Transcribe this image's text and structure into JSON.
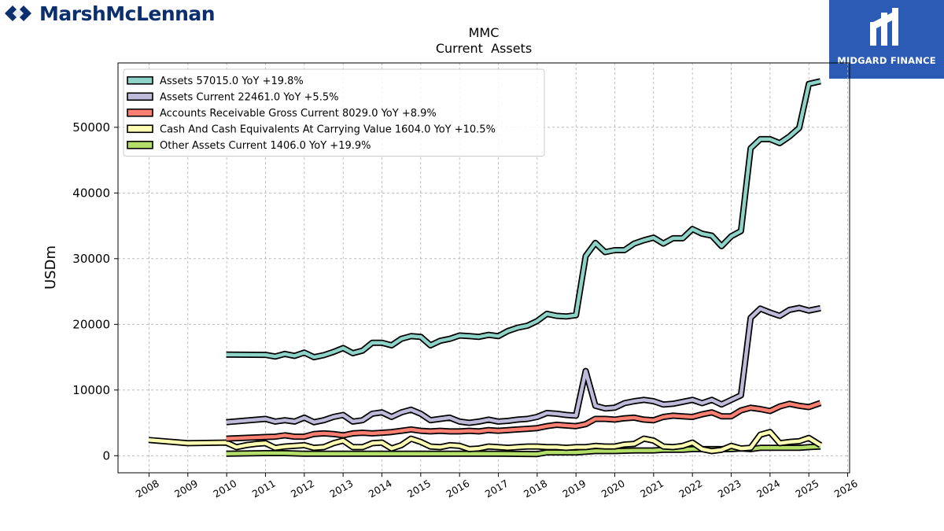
{
  "branding": {
    "left_logo_text": "MarshMcLennan",
    "right_logo_text": "MIDGARD FINANCE",
    "left_logo_color": "#0b2f6e",
    "right_logo_bg": "#2b5bb5"
  },
  "chart_data": {
    "type": "line",
    "title": "MMC",
    "subtitle": "Current  Assets",
    "ylabel": "USDm",
    "xlabel": "",
    "xlim": [
      2007.2,
      2026.05
    ],
    "ylim": [
      -2600,
      59800
    ],
    "xticks": [
      2008,
      2009,
      2010,
      2011,
      2012,
      2013,
      2014,
      2015,
      2016,
      2017,
      2018,
      2019,
      2020,
      2021,
      2022,
      2023,
      2024,
      2025,
      2026
    ],
    "xtick_labels": [
      "2008",
      "2009",
      "2010",
      "2011",
      "2012",
      "2013",
      "2014",
      "2015",
      "2016",
      "2017",
      "2018",
      "2019",
      "2020",
      "2021",
      "2022",
      "2023",
      "2024",
      "2025",
      "2026"
    ],
    "yticks": [
      0,
      10000,
      20000,
      30000,
      40000,
      50000
    ],
    "ytick_labels": [
      "0",
      "10000",
      "20000",
      "30000",
      "40000",
      "50000"
    ],
    "grid": true,
    "legend_position": "top-left",
    "series": [
      {
        "name": "Assets  57015.0 YoY +19.8%",
        "color": "#8dd3c7",
        "points": [
          [
            2009.99,
            15400
          ],
          [
            2011.0,
            15350
          ],
          [
            2011.25,
            15100
          ],
          [
            2011.5,
            15500
          ],
          [
            2011.75,
            15200
          ],
          [
            2012.0,
            15700
          ],
          [
            2012.25,
            15000
          ],
          [
            2012.5,
            15300
          ],
          [
            2012.75,
            15800
          ],
          [
            2013.0,
            16400
          ],
          [
            2013.25,
            15600
          ],
          [
            2013.5,
            16000
          ],
          [
            2013.75,
            17200
          ],
          [
            2014.0,
            17200
          ],
          [
            2014.25,
            16800
          ],
          [
            2014.5,
            17800
          ],
          [
            2014.75,
            18200
          ],
          [
            2015.0,
            18100
          ],
          [
            2015.25,
            16800
          ],
          [
            2015.5,
            17500
          ],
          [
            2015.75,
            17800
          ],
          [
            2016.0,
            18300
          ],
          [
            2016.25,
            18200
          ],
          [
            2016.5,
            18100
          ],
          [
            2016.75,
            18400
          ],
          [
            2017.0,
            18200
          ],
          [
            2017.25,
            19000
          ],
          [
            2017.5,
            19500
          ],
          [
            2017.75,
            19800
          ],
          [
            2018.0,
            20500
          ],
          [
            2018.25,
            21600
          ],
          [
            2018.5,
            21300
          ],
          [
            2018.75,
            21200
          ],
          [
            2019.0,
            21400
          ],
          [
            2019.25,
            30400
          ],
          [
            2019.5,
            32400
          ],
          [
            2019.75,
            31000
          ],
          [
            2020.0,
            31300
          ],
          [
            2020.25,
            31300
          ],
          [
            2020.5,
            32300
          ],
          [
            2020.75,
            32800
          ],
          [
            2021.0,
            33200
          ],
          [
            2021.25,
            32300
          ],
          [
            2021.5,
            33100
          ],
          [
            2021.75,
            33100
          ],
          [
            2022.0,
            34500
          ],
          [
            2022.25,
            33800
          ],
          [
            2022.5,
            33500
          ],
          [
            2022.75,
            31900
          ],
          [
            2023.0,
            33400
          ],
          [
            2023.25,
            34200
          ],
          [
            2023.5,
            46800
          ],
          [
            2023.75,
            48200
          ],
          [
            2024.0,
            48200
          ],
          [
            2024.25,
            47600
          ],
          [
            2024.5,
            48600
          ],
          [
            2024.75,
            49900
          ],
          [
            2025.0,
            56600
          ],
          [
            2025.3,
            57015
          ]
        ]
      },
      {
        "name": "Assets Current  22461.0 YoY +5.5%",
        "color": "#bebada",
        "points": [
          [
            2009.99,
            5100
          ],
          [
            2011.0,
            5600
          ],
          [
            2011.25,
            5200
          ],
          [
            2011.5,
            5400
          ],
          [
            2011.75,
            5200
          ],
          [
            2012.0,
            5800
          ],
          [
            2012.25,
            5100
          ],
          [
            2012.5,
            5400
          ],
          [
            2012.75,
            5900
          ],
          [
            2013.0,
            6200
          ],
          [
            2013.25,
            5200
          ],
          [
            2013.5,
            5400
          ],
          [
            2013.75,
            6400
          ],
          [
            2014.0,
            6600
          ],
          [
            2014.25,
            5900
          ],
          [
            2014.5,
            6600
          ],
          [
            2014.75,
            7000
          ],
          [
            2015.0,
            6400
          ],
          [
            2015.25,
            5400
          ],
          [
            2015.5,
            5600
          ],
          [
            2015.75,
            5800
          ],
          [
            2016.0,
            5200
          ],
          [
            2016.25,
            5000
          ],
          [
            2016.5,
            5200
          ],
          [
            2016.75,
            5500
          ],
          [
            2017.0,
            5200
          ],
          [
            2017.25,
            5300
          ],
          [
            2017.5,
            5500
          ],
          [
            2017.75,
            5600
          ],
          [
            2018.0,
            5900
          ],
          [
            2018.25,
            6500
          ],
          [
            2018.5,
            6400
          ],
          [
            2018.75,
            6200
          ],
          [
            2019.0,
            6100
          ],
          [
            2019.25,
            12900
          ],
          [
            2019.5,
            7600
          ],
          [
            2019.75,
            7200
          ],
          [
            2020.0,
            7300
          ],
          [
            2020.25,
            8000
          ],
          [
            2020.5,
            8300
          ],
          [
            2020.75,
            8500
          ],
          [
            2021.0,
            8300
          ],
          [
            2021.25,
            7800
          ],
          [
            2021.5,
            7900
          ],
          [
            2021.75,
            8200
          ],
          [
            2022.0,
            8500
          ],
          [
            2022.25,
            8000
          ],
          [
            2022.5,
            8500
          ],
          [
            2022.75,
            7800
          ],
          [
            2023.0,
            8500
          ],
          [
            2023.25,
            9200
          ],
          [
            2023.5,
            21000
          ],
          [
            2023.75,
            22400
          ],
          [
            2024.0,
            21800
          ],
          [
            2024.25,
            21300
          ],
          [
            2024.5,
            22200
          ],
          [
            2024.75,
            22500
          ],
          [
            2025.0,
            22100
          ],
          [
            2025.3,
            22461
          ]
        ]
      },
      {
        "name": "Accounts Receivable Gross Current  8029.0 YoY +8.9%",
        "color": "#fb8072",
        "points": [
          [
            2009.99,
            2600
          ],
          [
            2011.0,
            2850
          ],
          [
            2011.25,
            2900
          ],
          [
            2011.5,
            3100
          ],
          [
            2011.75,
            2900
          ],
          [
            2012.0,
            2900
          ],
          [
            2012.25,
            3300
          ],
          [
            2012.5,
            3400
          ],
          [
            2012.75,
            3300
          ],
          [
            2013.0,
            3100
          ],
          [
            2013.25,
            3400
          ],
          [
            2013.5,
            3500
          ],
          [
            2013.75,
            3400
          ],
          [
            2014.0,
            3500
          ],
          [
            2014.25,
            3600
          ],
          [
            2014.5,
            3800
          ],
          [
            2014.75,
            4000
          ],
          [
            2015.0,
            3800
          ],
          [
            2015.25,
            3700
          ],
          [
            2015.5,
            3800
          ],
          [
            2015.75,
            3700
          ],
          [
            2016.0,
            3700
          ],
          [
            2016.25,
            3800
          ],
          [
            2016.5,
            3700
          ],
          [
            2016.75,
            3900
          ],
          [
            2017.0,
            3800
          ],
          [
            2017.25,
            3900
          ],
          [
            2017.5,
            4000
          ],
          [
            2017.75,
            4100
          ],
          [
            2018.0,
            4200
          ],
          [
            2018.25,
            4500
          ],
          [
            2018.5,
            4700
          ],
          [
            2018.75,
            4600
          ],
          [
            2019.0,
            4500
          ],
          [
            2019.25,
            4800
          ],
          [
            2019.5,
            5600
          ],
          [
            2019.75,
            5600
          ],
          [
            2020.0,
            5500
          ],
          [
            2020.25,
            5700
          ],
          [
            2020.5,
            5800
          ],
          [
            2020.75,
            5500
          ],
          [
            2021.0,
            5400
          ],
          [
            2021.25,
            5900
          ],
          [
            2021.5,
            6100
          ],
          [
            2021.75,
            6000
          ],
          [
            2022.0,
            5900
          ],
          [
            2022.25,
            6300
          ],
          [
            2022.5,
            6600
          ],
          [
            2022.75,
            6000
          ],
          [
            2023.0,
            6000
          ],
          [
            2023.25,
            6900
          ],
          [
            2023.5,
            7300
          ],
          [
            2023.75,
            7100
          ],
          [
            2024.0,
            6800
          ],
          [
            2024.25,
            7500
          ],
          [
            2024.5,
            7900
          ],
          [
            2024.75,
            7600
          ],
          [
            2025.0,
            7400
          ],
          [
            2025.3,
            8029
          ]
        ]
      },
      {
        "name": "Cash And Cash Equivalents At Carrying Value  1604.0 YoY +10.5%",
        "color": "#ffffb3",
        "points": [
          [
            2007.99,
            2400
          ],
          [
            2009.0,
            1900
          ],
          [
            2009.99,
            2000
          ],
          [
            2010.25,
            1300
          ],
          [
            2010.5,
            1600
          ],
          [
            2010.75,
            1800
          ],
          [
            2011.0,
            1900
          ],
          [
            2011.25,
            1200
          ],
          [
            2011.5,
            1400
          ],
          [
            2011.75,
            1500
          ],
          [
            2012.0,
            1600
          ],
          [
            2012.25,
            1200
          ],
          [
            2012.5,
            1300
          ],
          [
            2012.75,
            1900
          ],
          [
            2013.0,
            2300
          ],
          [
            2013.25,
            1300
          ],
          [
            2013.5,
            1300
          ],
          [
            2013.75,
            1900
          ],
          [
            2014.0,
            2000
          ],
          [
            2014.25,
            1100
          ],
          [
            2014.5,
            1600
          ],
          [
            2014.75,
            2600
          ],
          [
            2015.0,
            2100
          ],
          [
            2015.25,
            1400
          ],
          [
            2015.5,
            1300
          ],
          [
            2015.75,
            1600
          ],
          [
            2016.0,
            1500
          ],
          [
            2016.25,
            1000
          ],
          [
            2016.5,
            1100
          ],
          [
            2016.75,
            1400
          ],
          [
            2017.0,
            1300
          ],
          [
            2017.25,
            1200
          ],
          [
            2017.5,
            1300
          ],
          [
            2017.75,
            1400
          ],
          [
            2018.0,
            1400
          ],
          [
            2018.25,
            1300
          ],
          [
            2018.5,
            1300
          ],
          [
            2018.75,
            1200
          ],
          [
            2019.0,
            1300
          ],
          [
            2019.25,
            1300
          ],
          [
            2019.5,
            1500
          ],
          [
            2019.75,
            1400
          ],
          [
            2020.0,
            1400
          ],
          [
            2020.25,
            1700
          ],
          [
            2020.5,
            1800
          ],
          [
            2020.75,
            2600
          ],
          [
            2021.0,
            2300
          ],
          [
            2021.25,
            1400
          ],
          [
            2021.5,
            1300
          ],
          [
            2021.75,
            1500
          ],
          [
            2022.0,
            2000
          ],
          [
            2022.25,
            1000
          ],
          [
            2022.5,
            700
          ],
          [
            2022.75,
            900
          ],
          [
            2023.0,
            1500
          ],
          [
            2023.25,
            1100
          ],
          [
            2023.5,
            1200
          ],
          [
            2023.75,
            3200
          ],
          [
            2024.0,
            3600
          ],
          [
            2024.25,
            1900
          ],
          [
            2024.5,
            2100
          ],
          [
            2024.75,
            2200
          ],
          [
            2025.0,
            2700
          ],
          [
            2025.3,
            1604
          ]
        ]
      },
      {
        "name": "Other Assets Current  1406.0 YoY +19.9%",
        "color": "#b3de69",
        "points": [
          [
            2009.99,
            300
          ],
          [
            2011.0,
            400
          ],
          [
            2011.5,
            400
          ],
          [
            2012.0,
            300
          ],
          [
            2012.5,
            300
          ],
          [
            2013.0,
            300
          ],
          [
            2014.0,
            300
          ],
          [
            2015.0,
            300
          ],
          [
            2016.0,
            300
          ],
          [
            2017.0,
            300
          ],
          [
            2018.0,
            250
          ],
          [
            2018.25,
            500
          ],
          [
            2018.75,
            500
          ],
          [
            2019.0,
            500
          ],
          [
            2019.5,
            700
          ],
          [
            2020.0,
            700
          ],
          [
            2020.5,
            800
          ],
          [
            2021.0,
            800
          ],
          [
            2021.25,
            900
          ],
          [
            2021.75,
            900
          ],
          [
            2022.0,
            1000
          ],
          [
            2022.5,
            1000
          ],
          [
            2023.0,
            1000
          ],
          [
            2023.25,
            1100
          ],
          [
            2023.5,
            1000
          ],
          [
            2023.75,
            1200
          ],
          [
            2024.0,
            1200
          ],
          [
            2024.5,
            1200
          ],
          [
            2024.75,
            1200
          ],
          [
            2025.0,
            1300
          ],
          [
            2025.3,
            1406
          ]
        ]
      }
    ]
  }
}
